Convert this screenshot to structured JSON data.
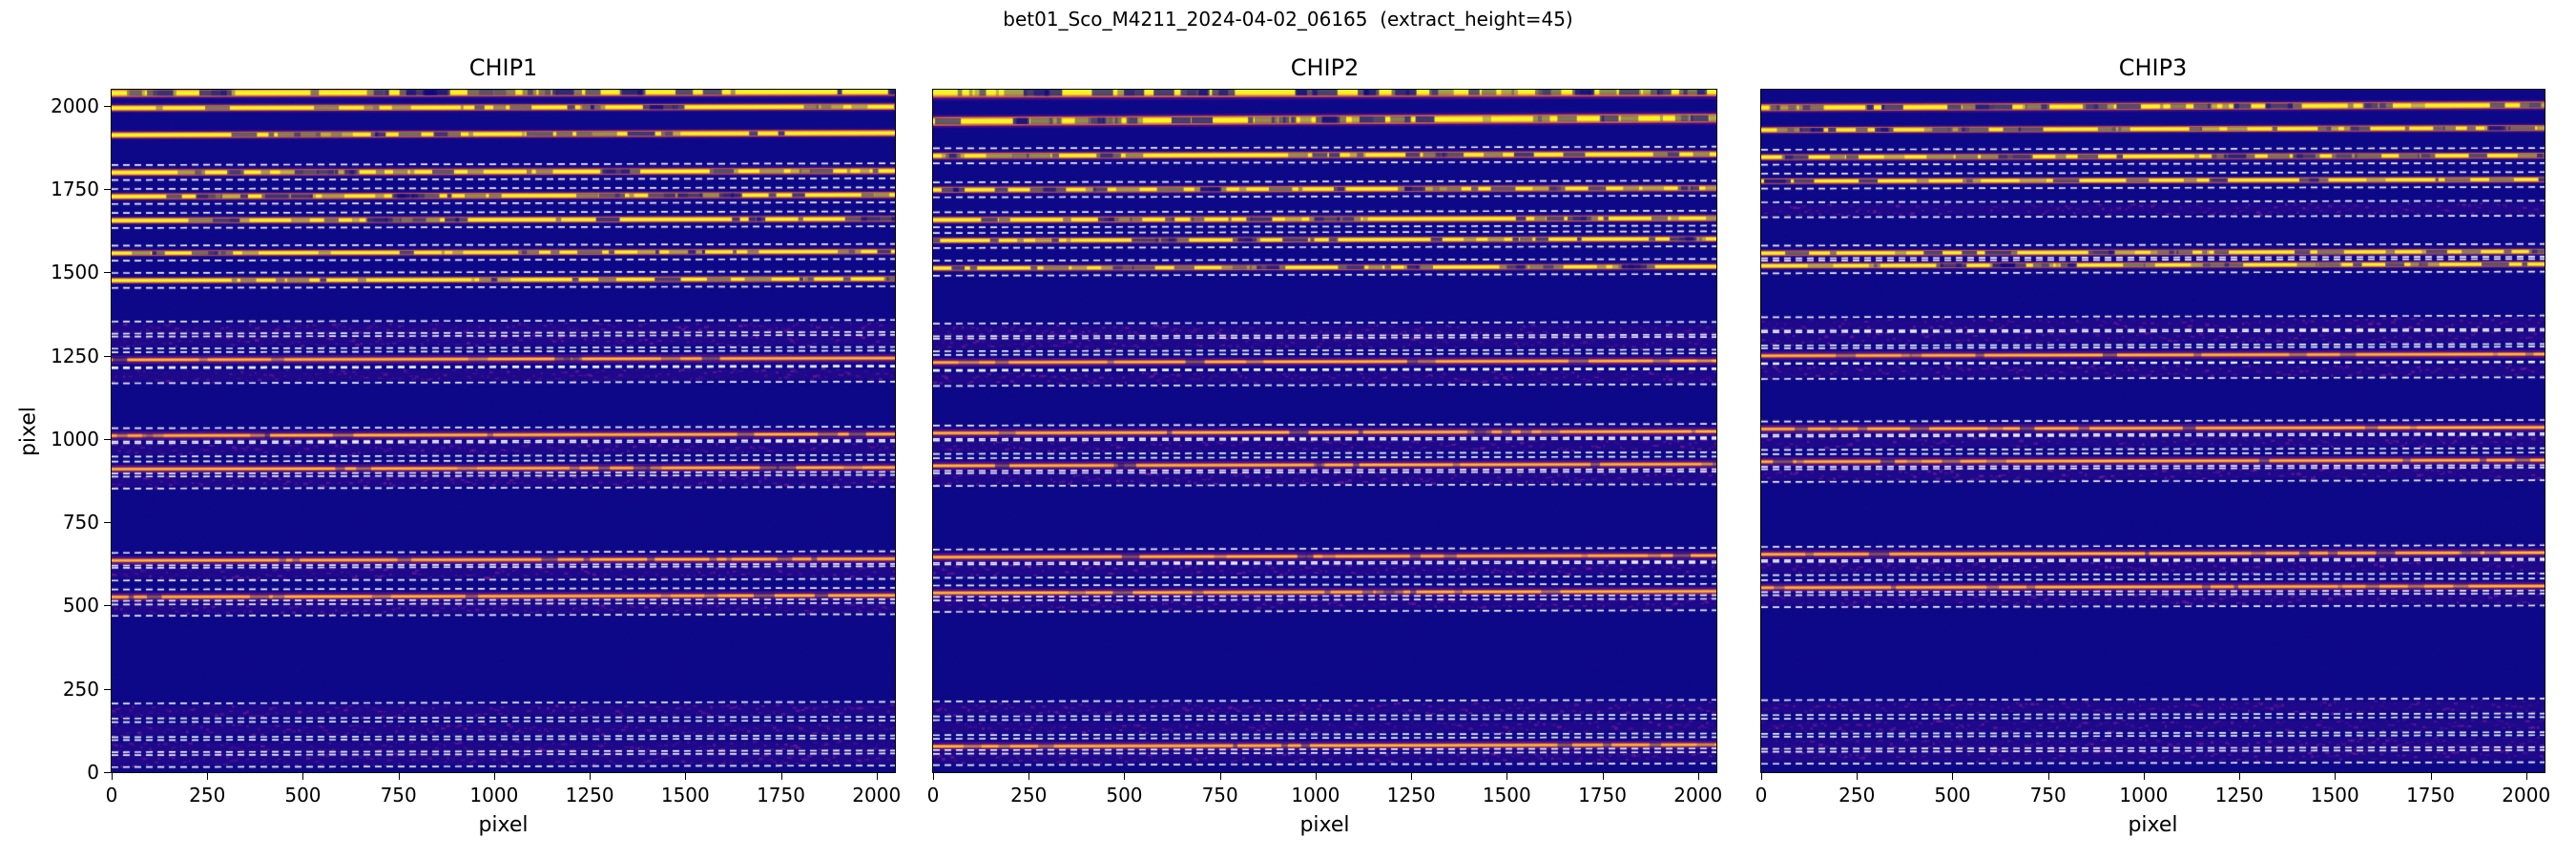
{
  "title": "bet01_Sco_M4211_2024-04-02_06165  (extract_height=45)",
  "extract_height": 45,
  "axes": {
    "xlabel": "pixel",
    "ylabel": "pixel"
  },
  "colors": {
    "background": "#0d0887",
    "faint_trace": "#a21d9a",
    "mid_trace": "#ed7953",
    "bright_trace": "#f0f921",
    "dashed_line": "#ffffff",
    "text": "#000000"
  },
  "chart_data": [
    {
      "type": "heatmap",
      "title": "CHIP1",
      "xlabel": "pixel",
      "ylabel": "pixel",
      "xlim": [
        0,
        2048
      ],
      "ylim": [
        0,
        2048
      ],
      "xticks": [
        0,
        250,
        500,
        750,
        1000,
        1250,
        1500,
        1750,
        2000
      ],
      "yticks": [
        0,
        250,
        500,
        750,
        1000,
        1250,
        1500,
        1750,
        2000
      ],
      "extract_height": 45,
      "colormap": "plasma",
      "orders": [
        {
          "y": 2040,
          "i": 1.0,
          "h": 18,
          "tilt": 4,
          "dash": false
        },
        {
          "y": 1995,
          "i": 0.95,
          "h": 14,
          "tilt": 4,
          "dash": false
        },
        {
          "y": 1915,
          "i": 0.9,
          "h": 14,
          "tilt": 6,
          "dash": false
        },
        {
          "y": 1802,
          "i": 0.9,
          "h": 14
        },
        {
          "y": 1730,
          "i": 0.85,
          "h": 13
        },
        {
          "y": 1658,
          "i": 0.9,
          "h": 13
        },
        {
          "y": 1560,
          "i": 0.85,
          "h": 12
        },
        {
          "y": 1478,
          "i": 0.85,
          "h": 12
        },
        {
          "y": 1332,
          "i": 0.14
        },
        {
          "y": 1296,
          "i": 0.12
        },
        {
          "y": 1240,
          "i": 0.4,
          "h": 8
        },
        {
          "y": 1192,
          "i": 0.14
        },
        {
          "y": 1012,
          "i": 0.55,
          "h": 9
        },
        {
          "y": 972,
          "i": 0.18
        },
        {
          "y": 912,
          "i": 0.5,
          "h": 8
        },
        {
          "y": 876,
          "i": 0.15
        },
        {
          "y": 638,
          "i": 0.55,
          "h": 9
        },
        {
          "y": 600,
          "i": 0.18
        },
        {
          "y": 528,
          "i": 0.5,
          "h": 8
        },
        {
          "y": 494,
          "i": 0.15
        },
        {
          "y": 186,
          "i": 0.16
        },
        {
          "y": 130,
          "i": 0.15
        },
        {
          "y": 76,
          "i": 0.16
        },
        {
          "y": 40,
          "i": 0.12
        }
      ]
    },
    {
      "type": "heatmap",
      "title": "CHIP2",
      "xlabel": "pixel",
      "ylabel": "pixel",
      "xlim": [
        0,
        2048
      ],
      "ylim": [
        0,
        2048
      ],
      "xticks": [
        0,
        250,
        500,
        750,
        1000,
        1250,
        1500,
        1750,
        2000
      ],
      "yticks": [
        0,
        250,
        500,
        750,
        1000,
        1250,
        1500,
        1750,
        2000
      ],
      "extract_height": 45,
      "colormap": "plasma",
      "orders": [
        {
          "y": 2042,
          "i": 0.8,
          "h": 24,
          "tilt": 4,
          "dash": false
        },
        {
          "y": 1958,
          "i": 1.0,
          "h": 20,
          "tilt": 10,
          "dash": false
        },
        {
          "y": 1852,
          "i": 0.9,
          "h": 14
        },
        {
          "y": 1750,
          "i": 0.88,
          "h": 13
        },
        {
          "y": 1660,
          "i": 0.9,
          "h": 13
        },
        {
          "y": 1598,
          "i": 0.85,
          "h": 12
        },
        {
          "y": 1515,
          "i": 0.88,
          "h": 12
        },
        {
          "y": 1326,
          "i": 0.13
        },
        {
          "y": 1288,
          "i": 0.12
        },
        {
          "y": 1232,
          "i": 0.35,
          "h": 8
        },
        {
          "y": 1184,
          "i": 0.13
        },
        {
          "y": 1020,
          "i": 0.6,
          "h": 9
        },
        {
          "y": 980,
          "i": 0.2
        },
        {
          "y": 922,
          "i": 0.55,
          "h": 8
        },
        {
          "y": 884,
          "i": 0.15
        },
        {
          "y": 648,
          "i": 0.6,
          "h": 9
        },
        {
          "y": 608,
          "i": 0.2
        },
        {
          "y": 540,
          "i": 0.55,
          "h": 8
        },
        {
          "y": 506,
          "i": 0.15
        },
        {
          "y": 192,
          "i": 0.16
        },
        {
          "y": 136,
          "i": 0.15
        },
        {
          "y": 80,
          "i": 0.3,
          "h": 6
        },
        {
          "y": 46,
          "i": 0.12
        }
      ]
    },
    {
      "type": "heatmap",
      "title": "CHIP3",
      "xlabel": "pixel",
      "ylabel": "pixel",
      "xlim": [
        0,
        2048
      ],
      "ylim": [
        0,
        2048
      ],
      "xticks": [
        0,
        250,
        500,
        750,
        1000,
        1250,
        1500,
        1750,
        2000
      ],
      "yticks": [
        0,
        250,
        500,
        750,
        1000,
        1250,
        1500,
        1750,
        2000
      ],
      "extract_height": 45,
      "colormap": "plasma",
      "orders": [
        {
          "y": 1998,
          "i": 1.0,
          "h": 16,
          "tilt": 8,
          "dash": false
        },
        {
          "y": 1930,
          "i": 0.95,
          "h": 13,
          "tilt": 6,
          "dash": false
        },
        {
          "y": 1848,
          "i": 0.9,
          "h": 13
        },
        {
          "y": 1776,
          "i": 0.85,
          "h": 12
        },
        {
          "y": 1690,
          "i": 0.15
        },
        {
          "y": 1560,
          "i": 0.9,
          "h": 12
        },
        {
          "y": 1522,
          "i": 0.85,
          "h": 12
        },
        {
          "y": 1345,
          "i": 0.13
        },
        {
          "y": 1305,
          "i": 0.12
        },
        {
          "y": 1252,
          "i": 0.3,
          "h": 7
        },
        {
          "y": 1205,
          "i": 0.13
        },
        {
          "y": 1032,
          "i": 0.6,
          "h": 9
        },
        {
          "y": 992,
          "i": 0.2
        },
        {
          "y": 934,
          "i": 0.55,
          "h": 8
        },
        {
          "y": 896,
          "i": 0.15
        },
        {
          "y": 656,
          "i": 0.55,
          "h": 9
        },
        {
          "y": 616,
          "i": 0.2
        },
        {
          "y": 556,
          "i": 0.5,
          "h": 8
        },
        {
          "y": 520,
          "i": 0.15
        },
        {
          "y": 196,
          "i": 0.16
        },
        {
          "y": 140,
          "i": 0.15
        },
        {
          "y": 86,
          "i": 0.15
        },
        {
          "y": 50,
          "i": 0.12
        }
      ]
    }
  ]
}
